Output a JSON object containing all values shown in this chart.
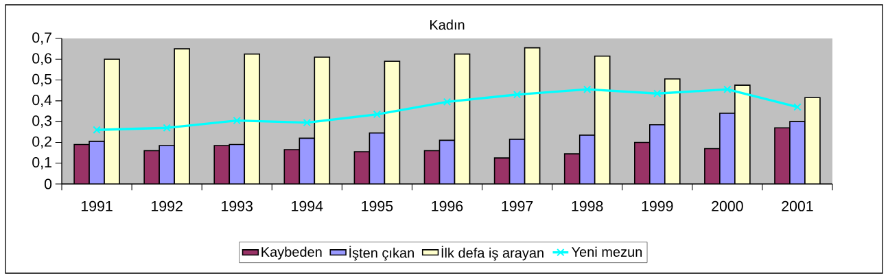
{
  "chart_data": {
    "type": "bar",
    "title": "Kadın",
    "categories": [
      "1991",
      "1992",
      "1993",
      "1994",
      "1995",
      "1996",
      "1997",
      "1998",
      "1999",
      "2000",
      "2001"
    ],
    "series": [
      {
        "name": "Kaybeden",
        "color": "#993366",
        "values": [
          0.19,
          0.16,
          0.185,
          0.165,
          0.155,
          0.16,
          0.125,
          0.145,
          0.2,
          0.17,
          0.27
        ]
      },
      {
        "name": "İşten çıkan",
        "color": "#9999ff",
        "values": [
          0.205,
          0.185,
          0.19,
          0.22,
          0.245,
          0.21,
          0.215,
          0.235,
          0.285,
          0.34,
          0.3
        ]
      },
      {
        "name": "İlk defa iş arayan",
        "color": "#ffffcc",
        "values": [
          0.6,
          0.65,
          0.625,
          0.61,
          0.59,
          0.625,
          0.655,
          0.615,
          0.505,
          0.475,
          0.415
        ]
      },
      {
        "name": "Yeni mezun",
        "color": "#00ffff",
        "type": "line",
        "marker": "cross",
        "values": [
          0.26,
          0.27,
          0.305,
          0.295,
          0.335,
          0.395,
          0.43,
          0.455,
          0.435,
          0.455,
          0.37
        ]
      }
    ],
    "ylim": [
      0,
      0.7
    ],
    "yticks": [
      0,
      {
        "value": 0.1,
        "label": "0,1"
      },
      {
        "value": 0.2,
        "label": "0,2"
      },
      {
        "value": 0.3,
        "label": "0,3"
      },
      {
        "value": 0.4,
        "label": "0,4"
      },
      {
        "value": 0.5,
        "label": "0,5"
      },
      {
        "value": 0.6,
        "label": "0,6"
      },
      {
        "value": 0.7,
        "label": "0,7"
      }
    ],
    "grid": false,
    "legend": "bottom"
  }
}
